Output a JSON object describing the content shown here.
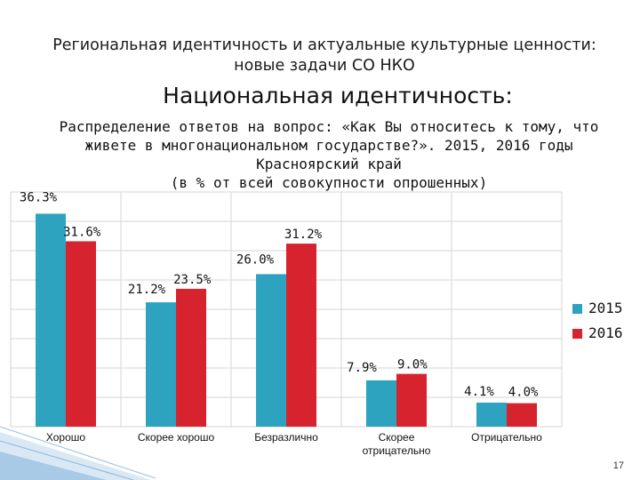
{
  "slide": {
    "header_line1": "Региональная идентичность и актуальные культурные ценности:",
    "header_line2": "новые задачи СО НКО",
    "title": "Национальная идентичность:",
    "page_number": "17"
  },
  "chart_data": {
    "type": "bar",
    "title_lines": [
      "Распределение ответов на вопрос: «Как Вы относитесь к тому, что",
      "живете в многонациональном государстве?». 2015, 2016 годы",
      "Красноярский край",
      "(в % от всей совокупности опрошенных)"
    ],
    "categories": [
      "Хорошо",
      "Скорее хорошо",
      "Безразлично",
      "Скорее отрицательно",
      "Отрицательно"
    ],
    "category_lines": [
      [
        "Хорошо"
      ],
      [
        "Скорее хорошо"
      ],
      [
        "Безразлично"
      ],
      [
        "Скорее",
        "отрицательно"
      ],
      [
        "Отрицательно"
      ]
    ],
    "series": [
      {
        "name": "2015",
        "values": [
          36.3,
          21.2,
          26.0,
          7.9,
          4.1
        ],
        "labels": [
          "36.3%",
          "21.2%",
          "26.0%",
          "7.9%",
          "4.1%"
        ],
        "color": "#2ea3bf"
      },
      {
        "name": "2016",
        "values": [
          31.6,
          23.5,
          31.2,
          9.0,
          4.0
        ],
        "labels": [
          "31.6%",
          "23.5%",
          "31.2%",
          "9.0%",
          "4.0%"
        ],
        "color": "#d7232e"
      }
    ],
    "ylim": [
      0,
      40
    ],
    "grid": true,
    "legend_position": "right"
  },
  "colors": {
    "bar_2015": "#2ea3bf",
    "bar_2016": "#d7232e",
    "grid": "#d4d4d4",
    "deco": "#2a7fc1"
  }
}
